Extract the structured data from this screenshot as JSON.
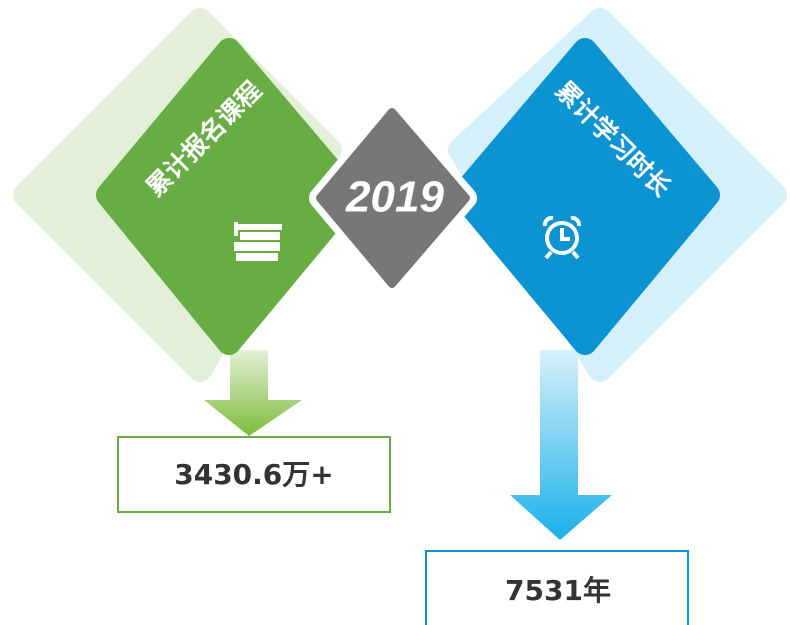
{
  "left": {
    "title": "累计报名课程",
    "value": "3430.6万+"
  },
  "center": {
    "label": "2019"
  },
  "right": {
    "title": "累计学习时长",
    "value": "7531年"
  }
}
